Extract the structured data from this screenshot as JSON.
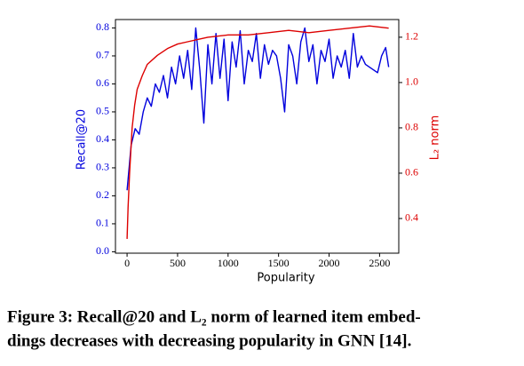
{
  "chart_data": {
    "type": "line",
    "xlabel": "Popularity",
    "ylabel": "Recall@20",
    "y2label": "L₂ norm",
    "caption": [
      "Figure 3: Recall@20 and L₂ norm of learned item embed-",
      "dings decreases with decreasing popularity in GNN [14]."
    ],
    "xlim": [
      -115,
      2690
    ],
    "xticks": [
      0,
      500,
      1000,
      1500,
      2000,
      2500
    ],
    "ylim": [
      -0.005,
      0.83
    ],
    "yticks": [
      {
        "value": 0,
        "label": "0.0"
      },
      0.1,
      0.2,
      0.3,
      0.4,
      0.5,
      0.6,
      0.7,
      0.8
    ],
    "y2lim": [
      0.247,
      1.278
    ],
    "y2ticks": [
      0.4,
      0.6,
      0.8,
      {
        "value": 1,
        "label": "1.0"
      },
      1.2
    ],
    "series": [
      {
        "color": "#0000dd",
        "axis": "y",
        "x": [
          0,
          40,
          80,
          120,
          160,
          200,
          240,
          280,
          320,
          360,
          400,
          440,
          480,
          520,
          560,
          600,
          640,
          680,
          720,
          760,
          800,
          840,
          880,
          920,
          960,
          1000,
          1040,
          1080,
          1120,
          1160,
          1200,
          1240,
          1280,
          1320,
          1360,
          1400,
          1440,
          1480,
          1520,
          1560,
          1600,
          1640,
          1680,
          1720,
          1760,
          1800,
          1840,
          1880,
          1920,
          1960,
          2000,
          2040,
          2080,
          2120,
          2160,
          2200,
          2240,
          2280,
          2320,
          2360,
          2400,
          2440,
          2480,
          2520,
          2560,
          2590
        ],
        "values": [
          0.22,
          0.38,
          0.44,
          0.42,
          0.5,
          0.55,
          0.52,
          0.6,
          0.57,
          0.63,
          0.55,
          0.66,
          0.6,
          0.7,
          0.62,
          0.72,
          0.58,
          0.8,
          0.65,
          0.46,
          0.74,
          0.6,
          0.78,
          0.62,
          0.76,
          0.54,
          0.75,
          0.66,
          0.79,
          0.6,
          0.72,
          0.68,
          0.78,
          0.62,
          0.74,
          0.67,
          0.72,
          0.7,
          0.62,
          0.5,
          0.74,
          0.7,
          0.6,
          0.75,
          0.8,
          0.68,
          0.74,
          0.6,
          0.72,
          0.68,
          0.76,
          0.62,
          0.7,
          0.66,
          0.72,
          0.62,
          0.78,
          0.66,
          0.7,
          0.67,
          0.66,
          0.65,
          0.64,
          0.7,
          0.73,
          0.66
        ]
      },
      {
        "color": "#dd0000",
        "axis": "y2",
        "x": [
          0,
          10,
          25,
          50,
          75,
          100,
          150,
          200,
          300,
          400,
          500,
          600,
          700,
          800,
          1000,
          1200,
          1400,
          1600,
          1800,
          2000,
          2200,
          2400,
          2590
        ],
        "values": [
          0.31,
          0.45,
          0.6,
          0.8,
          0.9,
          0.97,
          1.03,
          1.08,
          1.12,
          1.15,
          1.17,
          1.18,
          1.19,
          1.2,
          1.21,
          1.21,
          1.22,
          1.23,
          1.22,
          1.23,
          1.24,
          1.25,
          1.24
        ]
      }
    ]
  }
}
